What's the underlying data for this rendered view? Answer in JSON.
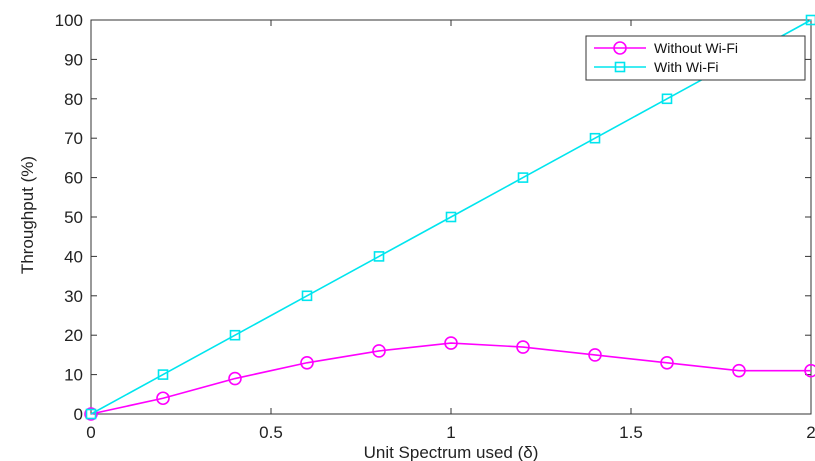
{
  "chart_data": {
    "type": "line",
    "title": "",
    "xlabel": "Unit Spectrum used (δ)",
    "ylabel": "Throughput (%)",
    "xlim": [
      0,
      2
    ],
    "ylim": [
      0,
      100
    ],
    "xticks": [
      0,
      0.5,
      1,
      1.5,
      2
    ],
    "yticks": [
      0,
      10,
      20,
      30,
      40,
      50,
      60,
      70,
      80,
      90,
      100
    ],
    "xtick_labels": [
      "0",
      "0.5",
      "1",
      "1.5",
      "2"
    ],
    "ytick_labels": [
      "0",
      "10",
      "20",
      "30",
      "40",
      "50",
      "60",
      "70",
      "80",
      "90",
      "100"
    ],
    "grid": false,
    "legend_position": "top-right",
    "series": [
      {
        "name": "Without Wi-Fi",
        "color": "#ff00ff",
        "marker": "circle",
        "x": [
          0,
          0.2,
          0.4,
          0.6,
          0.8,
          1.0,
          1.2,
          1.4,
          1.6,
          1.8,
          2.0
        ],
        "y": [
          0,
          4,
          9,
          13,
          16,
          18,
          17,
          15,
          13,
          11,
          11
        ]
      },
      {
        "name": "With Wi-Fi",
        "color": "#00e5ee",
        "marker": "square",
        "x": [
          0,
          0.2,
          0.4,
          0.6,
          0.8,
          1.0,
          1.2,
          1.4,
          1.6,
          1.8,
          2.0
        ],
        "y": [
          0,
          10,
          20,
          30,
          40,
          50,
          60,
          70,
          80,
          90,
          100
        ]
      }
    ]
  }
}
